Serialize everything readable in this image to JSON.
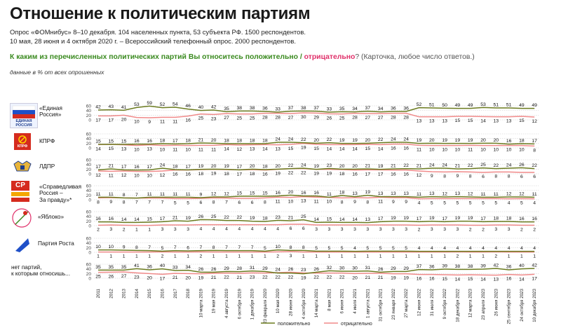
{
  "header": {
    "title": "Отношение к политическим партиям",
    "subtitle1": "Опрос «ФОМнибус» 8–10 декабря. 104 населенных пункта, 53 субъекта РФ. 1500 респондентов.",
    "subtitle2": "10 мая, 28 июня и 4 октября 2020 г. – Всероссийский телефонный опрос. 2000 респондентов.",
    "question_start": "К каким из перечисленных политических партий Вы относитесь ",
    "question_pos": "положительно",
    "question_sep": " / ",
    "question_neg": "отрицательно",
    "question_end": "? (Карточка, любое число ответов.)",
    "note": "данные в % от всех опрошенных"
  },
  "colors": {
    "positive": "#6b7b1f",
    "negative": "#f08a8a",
    "grid": "#bbbbbb"
  },
  "chart_data": {
    "type": "line",
    "title": "Отношение к политическим партиям",
    "x": [
      "2011",
      "2012",
      "2013",
      "2014",
      "2015",
      "2016",
      "2017",
      "2018",
      "10 марта 2019",
      "19 мая 2019",
      "4 августа 2019",
      "6 октября 2019",
      "1 декабря 2019",
      "23 февраля 2020",
      "10 мая 2020",
      "28 июня 2020",
      "4 октября 2020",
      "14 марта 2021",
      "8 мая 2021",
      "6 июня 2021",
      "4 июля 2021",
      "1 августа 2021",
      "31 октября 2021",
      "23 января 2022",
      "27 марта 2022",
      "12 июня 2022",
      "31 июля 2022",
      "9 октября 2022",
      "18 декабря 2022",
      "12 марта 2023",
      "23 апреля 2023",
      "26 июня 2023",
      "25 сентября 2023",
      "24 октября 2023",
      "10 декабря 2023"
    ],
    "y_axis_ticks": [
      "0",
      "20",
      "40",
      "60"
    ],
    "ylim": [
      0,
      60
    ],
    "legend": {
      "positive": "положительно",
      "negative": "отрицательно",
      "placement": "bottom"
    },
    "panels": [
      {
        "name": "«Единая Россия»",
        "positive": [
          42,
          43,
          41,
          53,
          59,
          52,
          54,
          46,
          40,
          42,
          35,
          38,
          38,
          36,
          33,
          37,
          38,
          37,
          33,
          35,
          34,
          37,
          34,
          36,
          36,
          52,
          51,
          50,
          49,
          49,
          53,
          51,
          51,
          49,
          49
        ],
        "negative": [
          17,
          17,
          20,
          10,
          9,
          11,
          11,
          16,
          25,
          23,
          27,
          25,
          25,
          28,
          28,
          27,
          30,
          29,
          26,
          25,
          28,
          27,
          27,
          28,
          28,
          13,
          13,
          13,
          15,
          15,
          14,
          13,
          13,
          15,
          12
        ]
      },
      {
        "name": "КПРФ",
        "positive": [
          15,
          15,
          15,
          16,
          16,
          18,
          17,
          18,
          21,
          20,
          18,
          18,
          18,
          18,
          24,
          24,
          22,
          20,
          22,
          19,
          19,
          20,
          22,
          24,
          24,
          19,
          20,
          19,
          19,
          19,
          20,
          20,
          16,
          18,
          17
        ],
        "negative": [
          14,
          15,
          13,
          10,
          13,
          10,
          11,
          10,
          11,
          11,
          14,
          12,
          13,
          14,
          13,
          15,
          19,
          15,
          14,
          14,
          14,
          15,
          14,
          16,
          16,
          11,
          10,
          10,
          10,
          11,
          10,
          10,
          10,
          10,
          8
        ]
      },
      {
        "name": "ЛДПР",
        "positive": [
          17,
          21,
          17,
          16,
          17,
          24,
          18,
          17,
          19,
          20,
          19,
          17,
          20,
          18,
          20,
          22,
          24,
          19,
          23,
          20,
          20,
          21,
          19,
          21,
          22,
          21,
          24,
          24,
          21,
          22,
          25,
          22,
          24,
          26,
          22
        ],
        "negative": [
          12,
          11,
          12,
          10,
          10,
          12,
          16,
          16,
          18,
          19,
          18,
          17,
          18,
          16,
          19,
          22,
          22,
          19,
          19,
          18,
          16,
          17,
          17,
          16,
          16,
          12,
          9,
          8,
          9,
          8,
          6,
          8,
          8,
          6,
          6
        ]
      },
      {
        "name": "«Справедливая Россия – За правду»*",
        "positive": [
          11,
          11,
          8,
          7,
          11,
          11,
          11,
          11,
          9,
          12,
          12,
          15,
          15,
          15,
          16,
          20,
          16,
          16,
          11,
          18,
          13,
          19,
          13,
          13,
          13,
          11,
          13,
          12,
          13,
          12,
          11,
          11,
          12,
          12,
          11
        ],
        "negative": [
          8,
          9,
          8,
          7,
          7,
          7,
          5,
          5,
          6,
          8,
          7,
          6,
          6,
          8,
          11,
          10,
          13,
          11,
          10,
          8,
          9,
          8,
          11,
          9,
          9,
          4,
          5,
          5,
          5,
          5,
          5,
          5,
          4,
          5,
          4
        ]
      },
      {
        "name": "«Яблоко»",
        "positive": [
          16,
          16,
          14,
          14,
          15,
          17,
          21,
          19,
          26,
          25,
          22,
          22,
          19,
          18,
          23,
          21,
          25,
          14,
          15,
          14,
          14,
          13,
          17,
          19,
          19,
          17,
          19,
          17,
          19,
          19,
          17,
          18,
          18,
          16,
          16
        ],
        "negative": [
          2,
          3,
          2,
          1,
          1,
          3,
          3,
          3,
          4,
          4,
          4,
          4,
          4,
          4,
          4,
          6,
          6,
          3,
          3,
          3,
          3,
          3,
          3,
          3,
          3,
          2,
          3,
          3,
          3,
          2,
          2,
          3,
          3,
          2,
          2
        ]
      },
      {
        "name": "Партия Роста",
        "positive": [
          10,
          10,
          9,
          8,
          7,
          5,
          7,
          6,
          7,
          8,
          7,
          7,
          7,
          5,
          10,
          8,
          8,
          5,
          5,
          5,
          4,
          5,
          5,
          5,
          5,
          4,
          4,
          4,
          4,
          4,
          4,
          4,
          4,
          4,
          4
        ],
        "negative": [
          1,
          1,
          1,
          1,
          1,
          2,
          1,
          1,
          2,
          1,
          1,
          1,
          1,
          1,
          2,
          3,
          1,
          1,
          1,
          1,
          1,
          1,
          1,
          1,
          1,
          1,
          1,
          1,
          2,
          1,
          1,
          2,
          1,
          1,
          1
        ]
      },
      {
        "name": "нет партий, к которым относитесь положительно",
        "positive": [
          35,
          35,
          35,
          41,
          36,
          40,
          33,
          34,
          26,
          26,
          29,
          28,
          31,
          29,
          22,
          22,
          19,
          26,
          32,
          30,
          30,
          31,
          26,
          29,
          29,
          37,
          36,
          39,
          38,
          38,
          39,
          42,
          36,
          40,
          42
        ],
        "negative": [
          25,
          26,
          27,
          23,
          20,
          17,
          21,
          20,
          19,
          21,
          22,
          21,
          23,
          22,
          24,
          26,
          23,
          22,
          22,
          22,
          20,
          21,
          21,
          19,
          19,
          16,
          16,
          15,
          14,
          15,
          14,
          13,
          16,
          14,
          17
        ]
      }
    ]
  },
  "labels": {
    "er": [
      "«Единая",
      "Россия»"
    ],
    "kprf": "КПРФ",
    "ldpr": "ЛДПР",
    "sr": [
      "«Справедливая",
      "Россия –",
      "За правду»*"
    ],
    "yabloko": "«Яблоко»",
    "rost": "Партия Роста",
    "none": [
      "нет партий,",
      "к которым относишь..."
    ],
    "logo_er": "ЕДИНАЯ РОССИЯ",
    "logo_kprf": "КПРФ",
    "logo_sr": "СР"
  }
}
